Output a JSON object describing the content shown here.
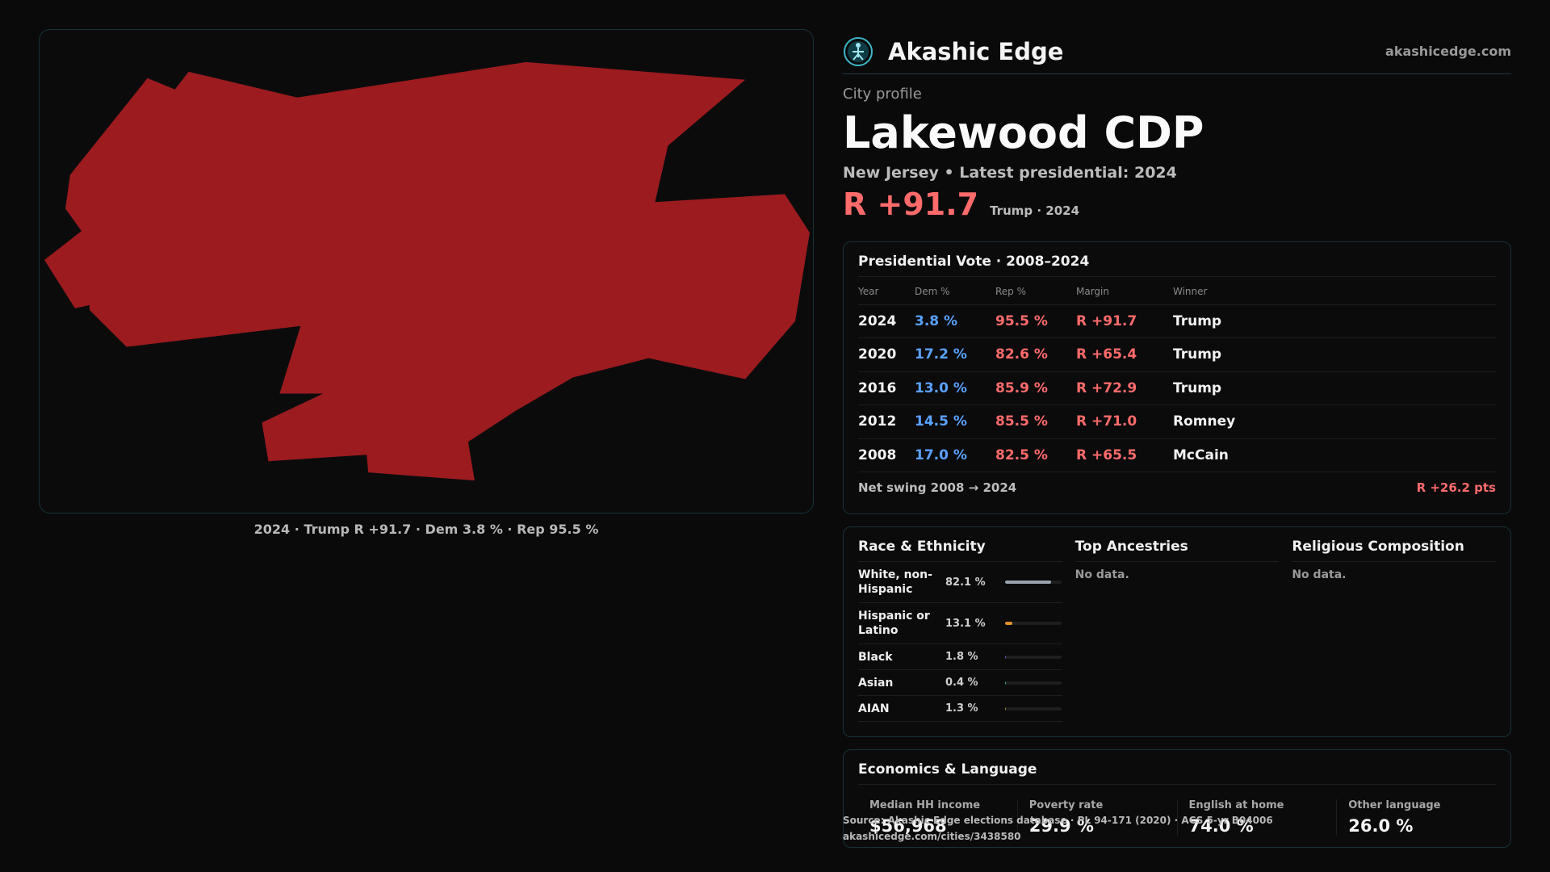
{
  "map": {
    "caption": "2024 · Trump R +91.7 · Dem 3.8 % · Rep 95.5 %",
    "fill_color": "#9b1b1f"
  },
  "brand": {
    "name": "Akashic Edge",
    "url": "akashicedge.com",
    "icon": "akashic-logo-icon",
    "color": "#3fb6c8"
  },
  "profile": {
    "label": "City profile",
    "title": "Lakewood CDP",
    "subtitle": "New Jersey • Latest presidential: 2024",
    "margin": "R +91.7",
    "margin_note": "Trump · 2024",
    "rep_color": "#ff6b6b",
    "dem_color": "#5aa2ff"
  },
  "vote": {
    "title": "Presidential Vote · 2008–2024",
    "headers": [
      "Year",
      "Dem %",
      "Rep %",
      "Margin",
      "Winner"
    ],
    "rows": [
      {
        "year": "2024",
        "dem": "3.8 %",
        "rep": "95.5 %",
        "margin": "R +91.7",
        "winner": "Trump"
      },
      {
        "year": "2020",
        "dem": "17.2 %",
        "rep": "82.6 %",
        "margin": "R +65.4",
        "winner": "Trump"
      },
      {
        "year": "2016",
        "dem": "13.0 %",
        "rep": "85.9 %",
        "margin": "R +72.9",
        "winner": "Trump"
      },
      {
        "year": "2012",
        "dem": "14.5 %",
        "rep": "85.5 %",
        "margin": "R +71.0",
        "winner": "Romney"
      },
      {
        "year": "2008",
        "dem": "17.0 %",
        "rep": "82.5 %",
        "margin": "R +65.5",
        "winner": "McCain"
      }
    ],
    "swing_label": "Net swing 2008 → 2024",
    "swing_value": "R +26.2 pts"
  },
  "demographics": {
    "race_title": "Race & Ethnicity",
    "race": [
      {
        "name": "White, non-Hispanic",
        "pct": "82.1 %",
        "share": 0.821,
        "color": "#9aa3ad"
      },
      {
        "name": "Hispanic or Latino",
        "pct": "13.1 %",
        "share": 0.131,
        "color": "#e0922a"
      },
      {
        "name": "Black",
        "pct": "1.8 %",
        "share": 0.018,
        "color": "#6a63c9"
      },
      {
        "name": "Asian",
        "pct": "0.4 %",
        "share": 0.004,
        "color": "#3fb6a0"
      },
      {
        "name": "AIAN",
        "pct": "1.3 %",
        "share": 0.013,
        "color": "#b08a3a"
      }
    ],
    "ancestry_title": "Top Ancestries",
    "ancestry_nodata": "No data.",
    "religion_title": "Religious Composition",
    "religion_nodata": "No data."
  },
  "economics": {
    "title": "Economics & Language",
    "stats": [
      {
        "label": "Median HH income",
        "value": "$56,968"
      },
      {
        "label": "Poverty rate",
        "value": "29.9 %"
      },
      {
        "label": "English at home",
        "value": "74.0 %"
      },
      {
        "label": "Other language",
        "value": "26.0 %"
      }
    ]
  },
  "source": {
    "line1": "Source: Akashic Edge elections database · PL 94-171 (2020) · ACS 5-yr B04006",
    "line2": "akashicedge.com/cities/3438580"
  }
}
